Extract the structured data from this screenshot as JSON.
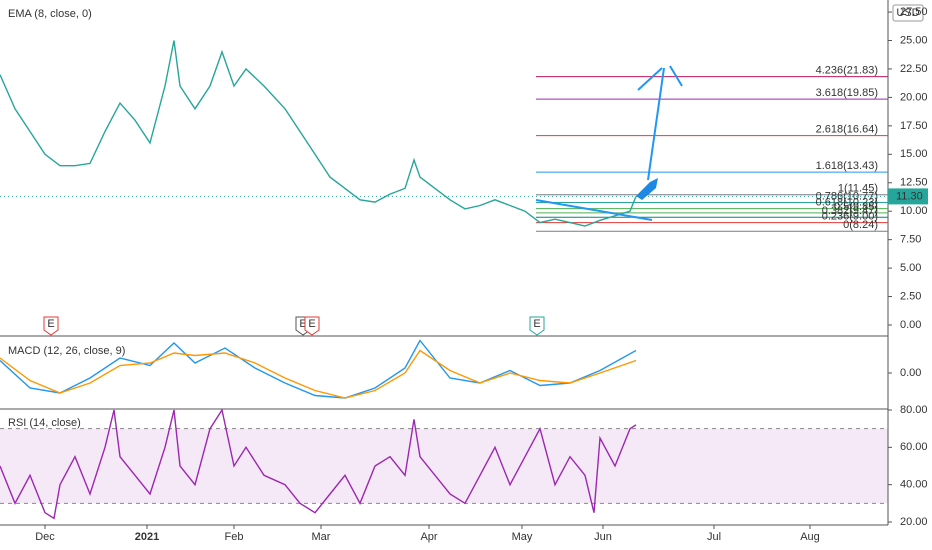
{
  "header": {
    "indicator": "EMA (8, close, 0)",
    "currency": "USD",
    "events": [
      {
        "x": 17,
        "label": "E",
        "color": "#e53935"
      },
      {
        "x": 101,
        "label": "E",
        "color": "#555555"
      },
      {
        "x": 104,
        "label": "E",
        "color": "#e53935"
      },
      {
        "x": 179,
        "label": "E",
        "color": "#26a69a"
      }
    ]
  },
  "chart_data": [
    {
      "type": "line",
      "title": "EMA (8, close, 0)",
      "x": [
        0,
        5,
        10,
        15,
        20,
        25,
        30,
        35,
        40,
        45,
        50,
        55,
        58,
        60,
        65,
        70,
        74,
        78,
        82,
        88,
        95,
        100,
        105,
        110,
        115,
        120,
        125,
        130,
        135,
        138,
        140,
        145,
        150,
        155,
        160,
        165,
        170,
        175,
        180,
        185,
        190,
        195,
        200,
        205,
        210,
        212
      ],
      "series": [
        {
          "color": "#26a69a",
          "values": [
            22,
            19,
            17,
            15,
            14,
            14,
            14.2,
            17,
            19.5,
            18,
            16,
            21,
            25,
            21,
            19,
            21,
            24,
            21,
            22.5,
            21,
            19,
            17,
            15,
            13,
            12,
            11,
            10.8,
            11.5,
            12,
            14.5,
            13,
            12,
            11,
            10.2,
            10.5,
            11,
            10.5,
            10,
            9,
            9.3,
            9,
            8.7,
            9.2,
            9.6,
            10,
            11.3
          ]
        }
      ],
      "xlim": [
        0,
        296
      ],
      "xticks": [
        {
          "value": 15,
          "label": "Dec"
        },
        {
          "value": 49,
          "label": "2021"
        },
        {
          "value": 78,
          "label": "Feb"
        },
        {
          "value": 107,
          "label": "Mar"
        },
        {
          "value": 143,
          "label": "Apr"
        },
        {
          "value": 174,
          "label": "May"
        },
        {
          "value": 201,
          "label": "Jun"
        },
        {
          "value": 238,
          "label": "Jul"
        },
        {
          "value": 270,
          "label": "Aug"
        }
      ],
      "ylim": [
        0,
        28.56
      ],
      "yticks": [
        {
          "value": 0,
          "label": "0.00"
        },
        {
          "value": 2.5,
          "label": "2.50"
        },
        {
          "value": 5,
          "label": "5.00"
        },
        {
          "value": 7.5,
          "label": "7.50"
        },
        {
          "value": 10,
          "label": "10.00"
        },
        {
          "value": 12.5,
          "label": "12.50"
        },
        {
          "value": 15,
          "label": "15.00"
        },
        {
          "value": 17.5,
          "label": "17.50"
        },
        {
          "value": 20,
          "label": "20.00"
        },
        {
          "value": 22.5,
          "label": "22.50"
        },
        {
          "value": 25,
          "label": "25.00"
        },
        {
          "value": 27.5,
          "label": "27.50"
        }
      ],
      "last": {
        "value": 11.3,
        "label": "11.30"
      },
      "fib": [
        {
          "value": 21.83,
          "label": "4.236(21.83)",
          "color": "#c2185b"
        },
        {
          "value": 19.85,
          "label": "3.618(19.85)",
          "color": "#9c27b0"
        },
        {
          "value": 16.64,
          "label": "2.618(16.64)",
          "color": "#e53935"
        },
        {
          "value": 13.43,
          "label": "1.618(13.43)",
          "color": "#2196f3"
        },
        {
          "value": 11.45,
          "label": "1(11.45)",
          "color": "#787b86"
        },
        {
          "value": 10.77,
          "label": "0.786(10.77)",
          "color": "#26a69a"
        },
        {
          "value": 10.23,
          "label": "0.618(10.23)",
          "color": "#4caf50"
        },
        {
          "value": 9.85,
          "label": "0.5(9.85)",
          "color": "#4caf50"
        },
        {
          "value": 9.47,
          "label": "0.382(9.47)",
          "color": "#00897b"
        },
        {
          "value": 9.0,
          "label": "0.236(9.00)",
          "color": "#e53935"
        },
        {
          "value": 8.24,
          "label": "0(8.24)",
          "color": "#787b86"
        }
      ]
    },
    {
      "type": "line",
      "title": "MACD (12, 26, close, 9)",
      "x": [
        0,
        10,
        20,
        30,
        40,
        50,
        58,
        65,
        75,
        85,
        95,
        105,
        115,
        125,
        135,
        140,
        150,
        160,
        170,
        180,
        190,
        200,
        212
      ],
      "series": [
        {
          "color": "#2196f3",
          "values": [
            0.5,
            -0.6,
            -0.8,
            -0.2,
            0.6,
            0.3,
            1.2,
            0.4,
            1.0,
            0.2,
            -0.4,
            -0.9,
            -1.0,
            -0.6,
            0.2,
            1.3,
            -0.2,
            -0.4,
            0.1,
            -0.5,
            -0.4,
            0.1,
            0.9
          ]
        },
        {
          "color": "#ff9800",
          "values": [
            0.6,
            -0.3,
            -0.8,
            -0.4,
            0.3,
            0.4,
            0.8,
            0.7,
            0.8,
            0.4,
            -0.2,
            -0.7,
            -1.0,
            -0.7,
            0.0,
            0.9,
            0.1,
            -0.4,
            0.0,
            -0.3,
            -0.4,
            0.0,
            0.5
          ]
        }
      ],
      "xlim": [
        0,
        296
      ],
      "ylim": [
        -1.4,
        1.4
      ],
      "yticks": [
        {
          "value": 0,
          "label": "0.00"
        }
      ]
    },
    {
      "type": "line",
      "title": "RSI (14, close)",
      "x": [
        0,
        5,
        10,
        15,
        18,
        20,
        25,
        30,
        35,
        38,
        40,
        45,
        50,
        55,
        58,
        60,
        65,
        70,
        74,
        78,
        82,
        88,
        95,
        100,
        105,
        110,
        115,
        120,
        125,
        130,
        135,
        138,
        140,
        145,
        150,
        155,
        160,
        165,
        170,
        175,
        180,
        185,
        190,
        195,
        198,
        200,
        205,
        210,
        212
      ],
      "series": [
        {
          "color": "#9c27b0",
          "values": [
            50,
            30,
            45,
            25,
            22,
            40,
            55,
            35,
            60,
            80,
            55,
            45,
            35,
            60,
            80,
            50,
            40,
            70,
            80,
            50,
            60,
            45,
            40,
            30,
            25,
            35,
            45,
            30,
            50,
            55,
            45,
            75,
            55,
            45,
            35,
            30,
            45,
            60,
            40,
            55,
            70,
            40,
            55,
            45,
            25,
            65,
            50,
            70,
            72
          ]
        }
      ],
      "xlim": [
        0,
        296
      ],
      "ylim": [
        20,
        80
      ],
      "band": [
        30,
        70
      ],
      "yticks": [
        {
          "value": 20,
          "label": "20.00"
        },
        {
          "value": 40,
          "label": "40.00"
        },
        {
          "value": 60,
          "label": "60.00"
        },
        {
          "value": 80,
          "label": "80.00"
        }
      ]
    }
  ]
}
